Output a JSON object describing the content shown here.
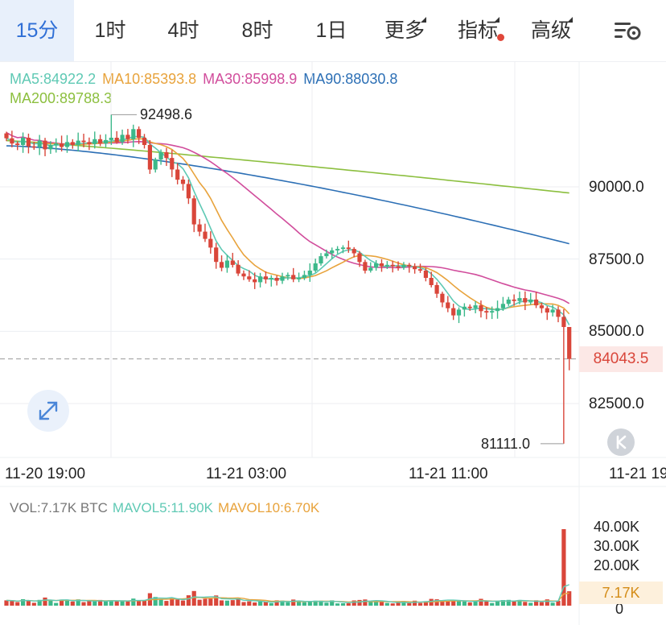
{
  "toolbar": {
    "tabs": [
      {
        "label": "15分",
        "active": true,
        "arrow": false,
        "dot": false
      },
      {
        "label": "1时",
        "active": false,
        "arrow": false,
        "dot": false
      },
      {
        "label": "4时",
        "active": false,
        "arrow": false,
        "dot": false
      },
      {
        "label": "8时",
        "active": false,
        "arrow": false,
        "dot": false
      },
      {
        "label": "1日",
        "active": false,
        "arrow": false,
        "dot": false
      },
      {
        "label": "更多",
        "active": false,
        "arrow": true,
        "dot": false
      },
      {
        "label": "指标",
        "active": false,
        "arrow": true,
        "dot": true
      },
      {
        "label": "高级",
        "active": false,
        "arrow": true,
        "dot": false
      }
    ],
    "settings_icon": "settings-gear-icon"
  },
  "ma_legend": {
    "ma5": "MA5:84922.2",
    "ma10": "MA10:85393.8",
    "ma30": "MA30:85998.9",
    "ma90": "MA90:88030.8",
    "ma200": "MA200:89788.3"
  },
  "colors": {
    "up": "#3cb88a",
    "down": "#d9463a",
    "ma5": "#5fc9b4",
    "ma10": "#e8a33c",
    "ma30": "#d14d9c",
    "ma90": "#2c6fb5",
    "ma200": "#8cbf3f",
    "grid": "#eceef2",
    "volume_last_tag": "#d48c17"
  },
  "price_axis_labels": [
    "90000.0",
    "87500.0",
    "85000.0",
    "82500.0"
  ],
  "current_price": "84043.5",
  "high_annotation": "92498.6",
  "low_annotation": "81111.0",
  "time_labels": [
    "11-20 19:00",
    "11-21 03:00",
    "11-21 11:00",
    "11-21 19"
  ],
  "volume_legend": {
    "vol": "VOL:7.17K BTC",
    "mavol5": "MAVOL5:11.90K",
    "mavol10": "MAVOL10:6.70K"
  },
  "volume_axis_labels": [
    "40.00K",
    "30.00K",
    "20.00K",
    "0"
  ],
  "volume_current": "7.17K",
  "expand_icon": "expand-arrows-icon",
  "k_icon": "k-line-return-icon",
  "chart_data": {
    "type": "candlestick",
    "interval": "15m",
    "price_ylim": [
      80000,
      93000
    ],
    "price_ticks": [
      82500,
      85000,
      87500,
      90000
    ],
    "x_ticks": [
      "11-20 19:00",
      "11-21 03:00",
      "11-21 11:00",
      "11-21 19"
    ],
    "high": 92498.6,
    "low": 81111.0,
    "last": 84043.5,
    "moving_averages": [
      {
        "name": "MA5",
        "last": 84922.2
      },
      {
        "name": "MA10",
        "last": 85393.8
      },
      {
        "name": "MA30",
        "last": 85998.9
      },
      {
        "name": "MA90",
        "last": 88030.8
      },
      {
        "name": "MA200",
        "last": 89788.3
      }
    ],
    "close": [
      91680,
      91500,
      91450,
      91700,
      91400,
      91380,
      91600,
      91300,
      91450,
      91500,
      91380,
      91550,
      91450,
      91600,
      91550,
      91480,
      91650,
      91500,
      91620,
      91700,
      91550,
      91800,
      91650,
      92000,
      91700,
      91450,
      90600,
      90950,
      91200,
      91000,
      90600,
      90250,
      90100,
      89600,
      88700,
      88450,
      88200,
      87900,
      87400,
      87200,
      87450,
      87300,
      87000,
      86900,
      86800,
      86700,
      86900,
      86800,
      86850,
      86750,
      86900,
      86950,
      86800,
      86850,
      86950,
      87100,
      87350,
      87600,
      87700,
      87800,
      87850,
      87900,
      87850,
      87700,
      87400,
      87100,
      87200,
      87350,
      87250,
      87300,
      87250,
      87200,
      87300,
      87250,
      87150,
      87100,
      86850,
      86600,
      86300,
      86000,
      85800,
      85550,
      85750,
      85850,
      85800,
      85900,
      85700,
      85650,
      85700,
      85800,
      85950,
      86100,
      86050,
      86150,
      86000,
      86100,
      85900,
      85800,
      85650,
      85750,
      85500,
      85150,
      84043.5
    ],
    "volume_k": {
      "last": 7.17,
      "max": 38.0,
      "ylim": [
        0,
        45
      ]
    },
    "mavol": [
      {
        "name": "MAVOL5",
        "last": 11.9
      },
      {
        "name": "MAVOL10",
        "last": 6.7
      }
    ]
  }
}
